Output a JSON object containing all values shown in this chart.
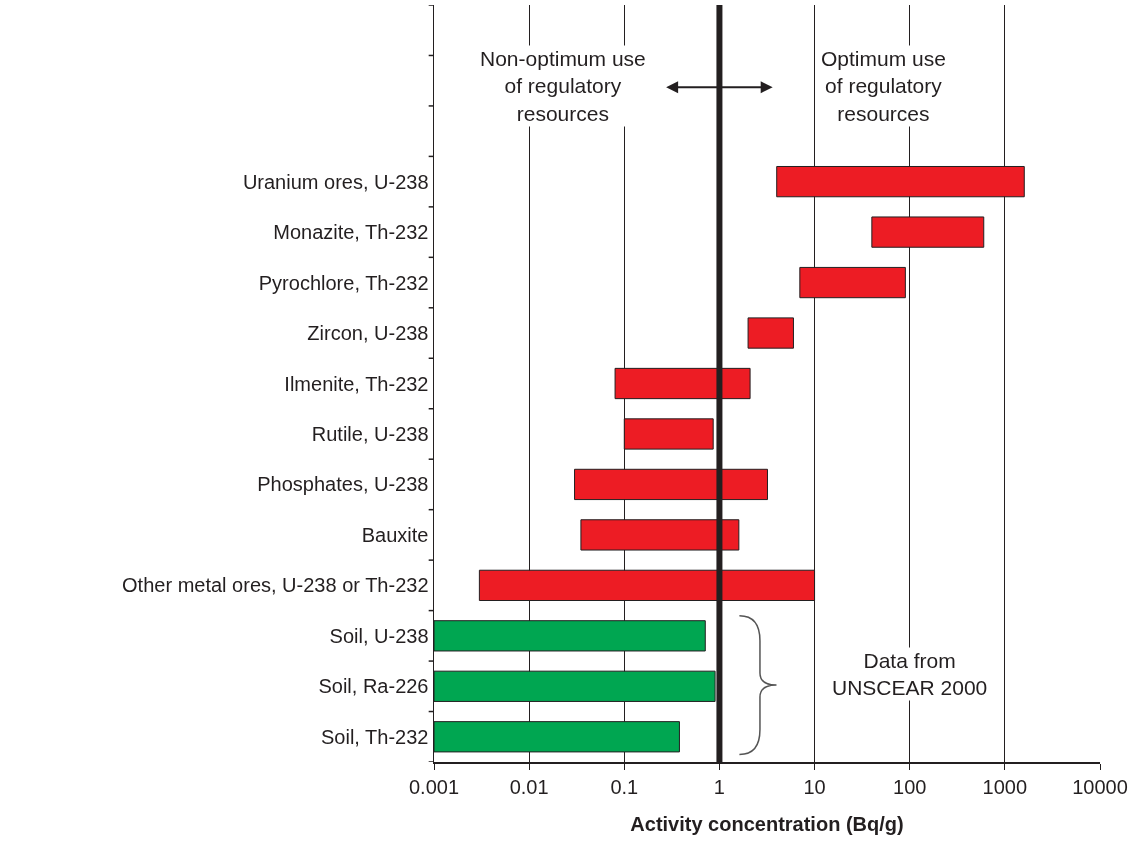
{
  "chart_data": {
    "type": "bar",
    "orientation": "horizontal",
    "xlabel": "Activity concentration (Bq/g)",
    "categories": [
      "Uranium ores, U-238",
      "Monazite, Th-232",
      "Pyrochlore, Th-232",
      "Zircon, U-238",
      "Ilmenite, Th-232",
      "Rutile, U-238",
      "Phosphates, U-238",
      "Bauxite",
      "Other metal ores, U-238 or Th-232",
      "Soil, U-238",
      "Soil, Ra-226",
      "Soil, Th-232"
    ],
    "base": [
      4,
      40,
      7,
      2,
      0.08,
      0.1,
      0.03,
      0.035,
      0.003,
      0.001,
      0.001,
      0.001
    ],
    "values": [
      1596,
      560,
      83,
      4,
      2.02,
      0.76,
      3.17,
      1.565,
      9.997,
      0.709,
      0.899,
      0.379
    ],
    "colors": [
      "#ed1c24",
      "#ed1c24",
      "#ed1c24",
      "#ed1c24",
      "#ed1c24",
      "#ed1c24",
      "#ed1c24",
      "#ed1c24",
      "#ed1c24",
      "#00a651",
      "#00a651",
      "#00a651"
    ],
    "log": "x",
    "xlim": [
      0.001,
      10000
    ],
    "xticks": [
      0.001,
      0.01,
      0.1,
      1,
      10,
      100,
      1000,
      10000
    ],
    "grid": "x",
    "ref_lines": [
      {
        "axis": "x",
        "value": 1,
        "color": "#231f20"
      }
    ],
    "annotations": [
      "Non-optimum use\nof regulatory\nresources",
      "Optimum use\nof regulatory\nresources",
      "Data from\nUNSCEAR 2000"
    ]
  }
}
